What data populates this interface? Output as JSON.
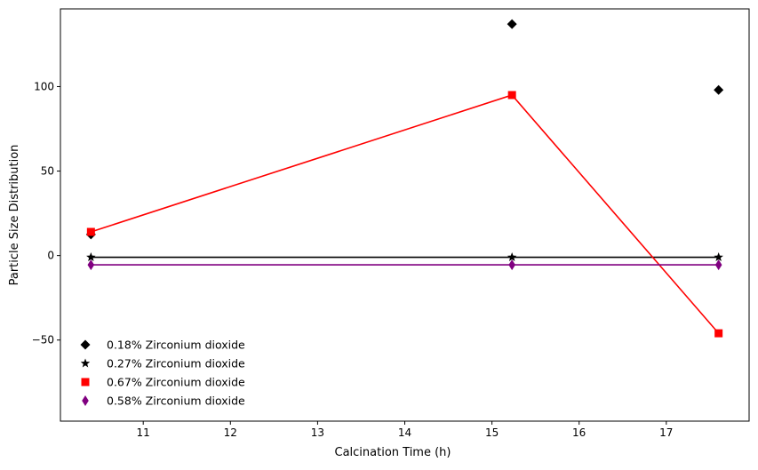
{
  "chart_data": {
    "type": "scatter",
    "title": "",
    "xlabel": "Calcination Time (h)",
    "ylabel": "Particle Size Distribution",
    "xlim": [
      10.05,
      17.95
    ],
    "ylim": [
      -98,
      146
    ],
    "xticks": [
      11,
      12,
      13,
      14,
      15,
      16,
      17
    ],
    "yticks": [
      -50,
      0,
      50,
      100
    ],
    "ytick_labels": [
      "−50",
      "0",
      "50",
      "100"
    ],
    "grid": false,
    "legend_position": "lower-left",
    "series": [
      {
        "name": "0.18% Zirconium dioxide",
        "marker": "diamond",
        "color": "#000000",
        "line": false,
        "x": [
          10.4,
          15.23,
          17.6
        ],
        "y": [
          12.5,
          137,
          98
        ]
      },
      {
        "name": "0.27% Zirconium dioxide",
        "marker": "star",
        "color": "#000000",
        "line": true,
        "x": [
          10.4,
          15.23,
          17.6
        ],
        "y": [
          -1,
          -1,
          -1
        ]
      },
      {
        "name": "0.67% Zirconium dioxide",
        "marker": "square",
        "color": "#ff0000",
        "line": true,
        "x": [
          10.4,
          15.23,
          17.6
        ],
        "y": [
          14,
          95,
          -46
        ]
      },
      {
        "name": "0.58% Zirconium dioxide",
        "marker": "thin-diamond",
        "color": "#800080",
        "line": true,
        "x": [
          10.4,
          15.23,
          17.6
        ],
        "y": [
          -5.5,
          -5.5,
          -5.5
        ]
      }
    ]
  }
}
